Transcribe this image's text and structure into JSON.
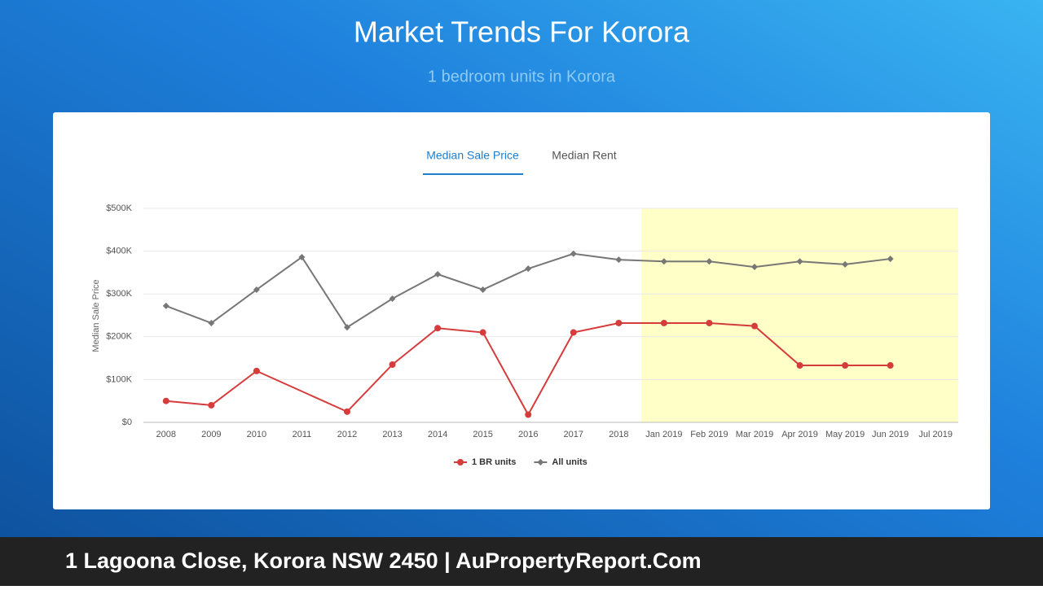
{
  "header": {
    "title": "Market Trends For Korora",
    "subtitle": "1 bedroom units in Korora"
  },
  "tabs": [
    "Median Sale Price",
    "Median Rent"
  ],
  "footer": "1 Lagoona Close, Korora NSW 2450 | AuPropertyReport.Com",
  "chart_data": {
    "type": "line",
    "y_label": "Median Sale Price",
    "categories": [
      "2008",
      "2009",
      "2010",
      "2011",
      "2012",
      "2013",
      "2014",
      "2015",
      "2016",
      "2017",
      "2018",
      "Jan 2019",
      "Feb 2019",
      "Mar 2019",
      "Apr 2019",
      "May 2019",
      "Jun 2019",
      "Jul 2019"
    ],
    "series": [
      {
        "name": "1 BR units",
        "color": "#d63c3c",
        "marker": "circle",
        "values": [
          50000,
          40000,
          120000,
          null,
          25000,
          135000,
          220000,
          210000,
          18000,
          210000,
          232000,
          232000,
          232000,
          225000,
          133000,
          133000,
          133000,
          null
        ]
      },
      {
        "name": "All units",
        "color": "#777777",
        "marker": "diamond",
        "values": [
          272000,
          232000,
          310000,
          386000,
          222000,
          289000,
          346000,
          310000,
          359000,
          394000,
          380000,
          376000,
          376000,
          363000,
          376000,
          369000,
          382000,
          null
        ]
      }
    ],
    "connect_gaps": true,
    "highlight_start": 11,
    "highlight_color": "#ffffc8",
    "ylim": [
      0,
      500000
    ],
    "yticks": [
      {
        "value": 0,
        "label": "$0"
      },
      {
        "value": 100000,
        "label": "$100K"
      },
      {
        "value": 200000,
        "label": "$200K"
      },
      {
        "value": 300000,
        "label": "$300K"
      },
      {
        "value": 400000,
        "label": "$400K"
      },
      {
        "value": 500000,
        "label": "$500K"
      }
    ],
    "grid": true,
    "legend": "bottom"
  }
}
